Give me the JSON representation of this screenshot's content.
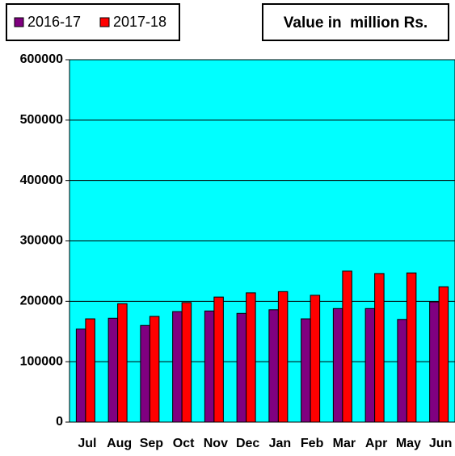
{
  "chart_data": {
    "type": "bar",
    "title": "Value in  million Rs.",
    "categories": [
      "Jul",
      "Aug",
      "Sep",
      "Oct",
      "Nov",
      "Dec",
      "Jan",
      "Feb",
      "Mar",
      "Apr",
      "May",
      "Jun"
    ],
    "series": [
      {
        "name": "2016-17",
        "color": "#800080",
        "values": [
          154000,
          172000,
          160000,
          183000,
          184000,
          180000,
          186000,
          171000,
          188000,
          188000,
          170000,
          199000
        ]
      },
      {
        "name": "2017-18",
        "color": "#ff0000",
        "values": [
          171000,
          196000,
          175000,
          198000,
          207000,
          214000,
          216000,
          210000,
          250000,
          246000,
          247000,
          224000
        ]
      }
    ],
    "ylim": [
      0,
      600000
    ],
    "yticks": [
      0,
      100000,
      200000,
      300000,
      400000,
      500000,
      600000
    ],
    "grid": true,
    "legend": "top-left",
    "background": "#00ffff"
  }
}
